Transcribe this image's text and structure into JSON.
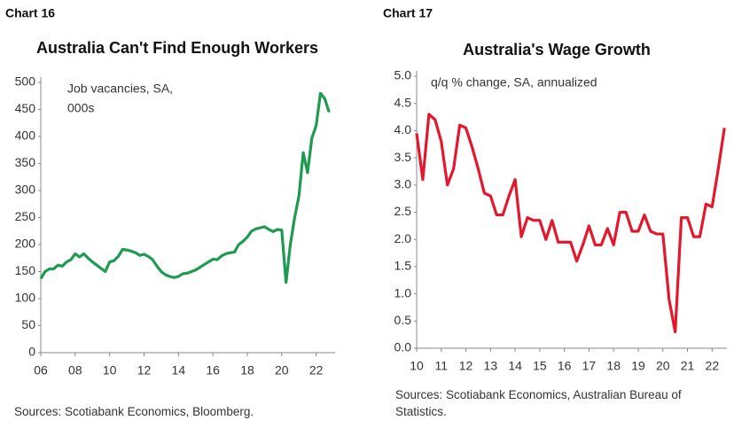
{
  "chart_data": [
    {
      "type": "line",
      "label": "Chart 16",
      "title": "Australia Can't Find Enough Workers",
      "annotation": [
        "Job vacancies, SA,",
        "000s"
      ],
      "source": "Sources: Scotiabank Economics, Bloomberg.",
      "x": [
        2006,
        2006.25,
        2006.5,
        2006.75,
        2007,
        2007.25,
        2007.5,
        2007.75,
        2008,
        2008.25,
        2008.5,
        2008.75,
        2009,
        2009.25,
        2009.5,
        2009.75,
        2010,
        2010.25,
        2010.5,
        2010.75,
        2011,
        2011.25,
        2011.5,
        2011.75,
        2012,
        2012.25,
        2012.5,
        2012.75,
        2013,
        2013.25,
        2013.5,
        2013.75,
        2014,
        2014.25,
        2014.5,
        2014.75,
        2015,
        2015.25,
        2015.5,
        2015.75,
        2016,
        2016.25,
        2016.5,
        2016.75,
        2017,
        2017.25,
        2017.5,
        2017.75,
        2018,
        2018.25,
        2018.5,
        2018.75,
        2019,
        2019.25,
        2019.5,
        2019.75,
        2020,
        2020.25,
        2020.5,
        2020.75,
        2021,
        2021.25,
        2021.5,
        2021.75,
        2022,
        2022.25,
        2022.5,
        2022.75
      ],
      "series": [
        {
          "color": "#1f9a50",
          "values": [
            137,
            150,
            155,
            155,
            162,
            160,
            168,
            172,
            183,
            177,
            183,
            175,
            168,
            162,
            156,
            150,
            168,
            170,
            178,
            191,
            190,
            188,
            185,
            180,
            182,
            178,
            172,
            160,
            150,
            144,
            141,
            139,
            141,
            146,
            147,
            150,
            153,
            158,
            163,
            168,
            173,
            172,
            179,
            183,
            185,
            186,
            200,
            206,
            214,
            225,
            229,
            231,
            233,
            228,
            224,
            228,
            227,
            130,
            200,
            250,
            290,
            370,
            333,
            397,
            420,
            480,
            470,
            445
          ]
        }
      ],
      "xlim": [
        2006,
        2023.1
      ],
      "xticks": [
        {
          "value": 2006,
          "label": "06"
        },
        {
          "value": 2008,
          "label": "08"
        },
        {
          "value": 2010,
          "label": "10"
        },
        {
          "value": 2012,
          "label": "12"
        },
        {
          "value": 2014,
          "label": "14"
        },
        {
          "value": 2016,
          "label": "16"
        },
        {
          "value": 2018,
          "label": "18"
        },
        {
          "value": 2020,
          "label": "20"
        },
        {
          "value": 2022,
          "label": "22"
        }
      ],
      "ylim": [
        0,
        500
      ],
      "yticks": [
        0,
        50,
        100,
        150,
        200,
        250,
        300,
        350,
        400,
        450,
        500
      ]
    },
    {
      "type": "line",
      "label": "Chart 17",
      "title": "Australia's Wage Growth",
      "annotation": [
        "q/q % change, SA, annualized"
      ],
      "source": "Sources: Scotiabank Economics, Australian Bureau of Statistics.",
      "x": [
        2010,
        2010.25,
        2010.5,
        2010.75,
        2011,
        2011.25,
        2011.5,
        2011.75,
        2012,
        2012.25,
        2012.5,
        2012.75,
        2013,
        2013.25,
        2013.5,
        2013.75,
        2014,
        2014.25,
        2014.5,
        2014.75,
        2015,
        2015.25,
        2015.5,
        2015.75,
        2016,
        2016.25,
        2016.5,
        2016.75,
        2017,
        2017.25,
        2017.5,
        2017.75,
        2018,
        2018.25,
        2018.5,
        2018.75,
        2019,
        2019.25,
        2019.5,
        2019.75,
        2020,
        2020.25,
        2020.5,
        2020.75,
        2021,
        2021.25,
        2021.5,
        2021.75,
        2022,
        2022.25,
        2022.5
      ],
      "series": [
        {
          "color": "#e3182d",
          "values": [
            3.95,
            3.1,
            4.3,
            4.2,
            3.8,
            3.0,
            3.3,
            4.1,
            4.05,
            3.7,
            3.3,
            2.85,
            2.8,
            2.45,
            2.45,
            2.8,
            3.1,
            2.05,
            2.4,
            2.35,
            2.35,
            2.0,
            2.35,
            1.95,
            1.95,
            1.95,
            1.6,
            1.9,
            2.25,
            1.9,
            1.9,
            2.2,
            1.9,
            2.5,
            2.5,
            2.15,
            2.15,
            2.45,
            2.15,
            2.1,
            2.1,
            0.9,
            0.3,
            2.4,
            2.4,
            2.05,
            2.05,
            2.65,
            2.6,
            3.3,
            4.05
          ]
        }
      ],
      "xlim": [
        2010,
        2022.6
      ],
      "xticks": [
        {
          "value": 2010,
          "label": "10"
        },
        {
          "value": 2011,
          "label": "11"
        },
        {
          "value": 2012,
          "label": "12"
        },
        {
          "value": 2013,
          "label": "13"
        },
        {
          "value": 2014,
          "label": "14"
        },
        {
          "value": 2015,
          "label": "15"
        },
        {
          "value": 2016,
          "label": "16"
        },
        {
          "value": 2017,
          "label": "17"
        },
        {
          "value": 2018,
          "label": "18"
        },
        {
          "value": 2019,
          "label": "19"
        },
        {
          "value": 2020,
          "label": "20"
        },
        {
          "value": 2021,
          "label": "21"
        },
        {
          "value": 2022,
          "label": "22"
        }
      ],
      "ylim": [
        0,
        5
      ],
      "yticks": [
        {
          "value": 0,
          "label": "0.0"
        },
        0.5,
        {
          "value": 1,
          "label": "1.0"
        },
        1.5,
        {
          "value": 2,
          "label": "2.0"
        },
        2.5,
        {
          "value": 3,
          "label": "3.0"
        },
        3.5,
        {
          "value": 4,
          "label": "4.0"
        },
        4.5,
        {
          "value": 5,
          "label": "5.0"
        }
      ]
    }
  ]
}
